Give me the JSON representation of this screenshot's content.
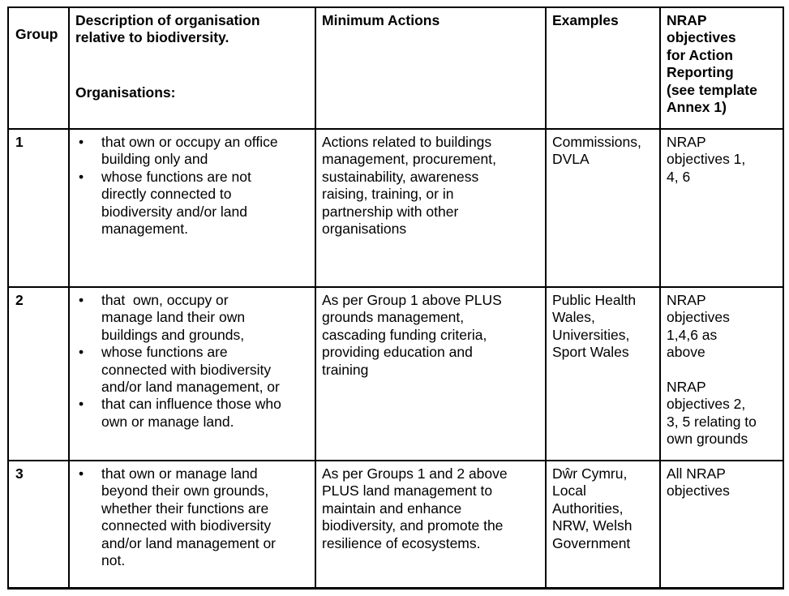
{
  "colors": {
    "border": "#000000",
    "text": "#000000",
    "background": "#ffffff"
  },
  "glyphs": {
    "bullet": "•"
  },
  "header": {
    "group": "Group",
    "description_title": "Description of organisation\nrelative to biodiversity.",
    "description_subtitle": "Organisations:",
    "minimum_actions": "Minimum Actions",
    "examples": "Examples",
    "nrap_objectives": "NRAP\nobjectives\nfor Action\nReporting\n(see template\nAnnex 1)"
  },
  "rows": [
    {
      "group": "1",
      "bullets": [
        "that own or occupy an office\nbuilding only and",
        "whose functions are not\ndirectly connected to\nbiodiversity and/or land\nmanagement."
      ],
      "minimum_actions": "Actions related to buildings\nmanagement, procurement,\nsustainability, awareness\nraising, training, or in\npartnership with other\norganisations",
      "examples": "Commissions,\nDVLA",
      "nrap_objectives": "NRAP\nobjectives 1,\n4, 6"
    },
    {
      "group": "2",
      "bullets": [
        "that  own, occupy or\nmanage land their own\nbuildings and grounds,",
        "whose functions are\nconnected with biodiversity\nand/or land management, or",
        "that can influence those who\nown or manage land."
      ],
      "minimum_actions": "As per Group 1 above PLUS\ngrounds management,\ncascading funding criteria,\nproviding education and\ntraining",
      "examples": "Public Health\nWales,\nUniversities,\nSport Wales",
      "nrap_objectives": "NRAP\nobjectives\n1,4,6 as\nabove\n\nNRAP\nobjectives 2,\n3, 5 relating to\nown grounds"
    },
    {
      "group": "3",
      "bullets": [
        "that own or manage land\nbeyond their own grounds,\nwhether their functions are\nconnected with biodiversity\nand/or land management or\nnot."
      ],
      "minimum_actions": "As per Groups 1 and 2 above\nPLUS land management to\nmaintain and enhance\nbiodiversity, and promote the\nresilience of ecosystems.",
      "examples": "Dŵr Cymru,\nLocal\nAuthorities,\nNRW, Welsh\nGovernment",
      "nrap_objectives": "All NRAP\nobjectives"
    }
  ]
}
